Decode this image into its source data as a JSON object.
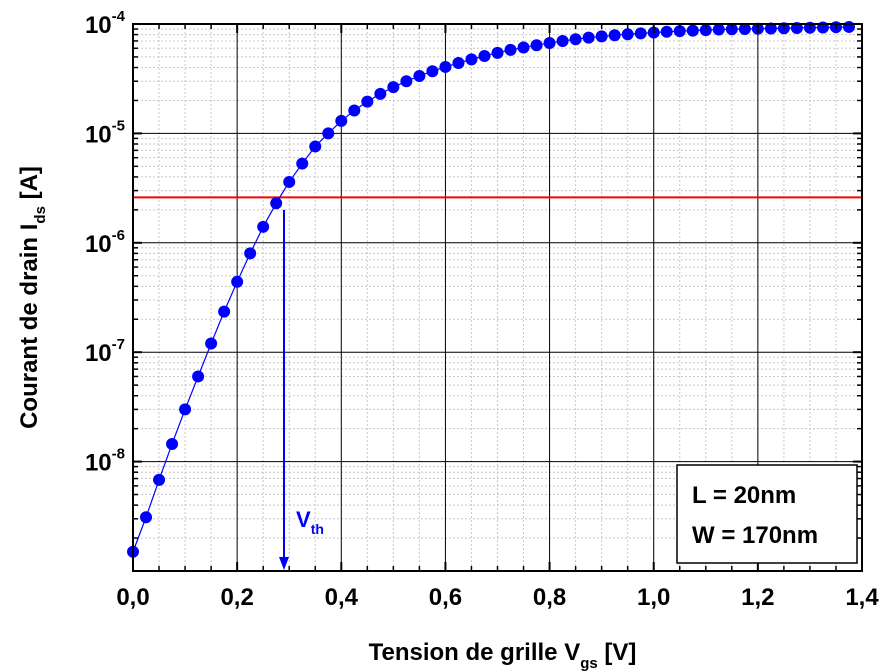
{
  "chart_data": {
    "type": "scatter",
    "title": "",
    "xlabel": {
      "main": "Tension de grille V",
      "sub": "gs",
      "unit": " [V]"
    },
    "ylabel": {
      "main": "Courant de drain I",
      "sub": "ds",
      "unit": " [A]"
    },
    "xlim": [
      0.0,
      1.4
    ],
    "ylim": [
      1e-09,
      0.0001
    ],
    "yscale": "log",
    "grid": true,
    "x_ticks": [
      "0,0",
      "0,2",
      "0,4",
      "0,6",
      "0,8",
      "1,0",
      "1,2",
      "1,4"
    ],
    "y_ticks": [
      {
        "base": "10",
        "exp": "-8",
        "value": 1e-08
      },
      {
        "base": "10",
        "exp": "-7",
        "value": 1e-07
      },
      {
        "base": "10",
        "exp": "-6",
        "value": 1e-06
      },
      {
        "base": "10",
        "exp": "-5",
        "value": 1e-05
      },
      {
        "base": "10",
        "exp": "-4",
        "value": 0.0001
      }
    ],
    "series": [
      {
        "color": "#0000ff",
        "marker": "circle",
        "line": true,
        "x": [
          0.0,
          0.025,
          0.05,
          0.075,
          0.1,
          0.125,
          0.15,
          0.175,
          0.2,
          0.225,
          0.25,
          0.275,
          0.3,
          0.325,
          0.35,
          0.375,
          0.4,
          0.425,
          0.45,
          0.475,
          0.5,
          0.525,
          0.55,
          0.575,
          0.6,
          0.625,
          0.65,
          0.675,
          0.7,
          0.725,
          0.75,
          0.775,
          0.8,
          0.825,
          0.85,
          0.875,
          0.9,
          0.925,
          0.95,
          0.975,
          1.0,
          1.025,
          1.05,
          1.075,
          1.1,
          1.125,
          1.15,
          1.175,
          1.2,
          1.225,
          1.25,
          1.275,
          1.3,
          1.325,
          1.35,
          1.375
        ],
        "y": [
          1.5e-09,
          3.1e-09,
          6.8e-09,
          1.45e-08,
          3e-08,
          6e-08,
          1.2e-07,
          2.35e-07,
          4.4e-07,
          8e-07,
          1.4e-06,
          2.3e-06,
          3.6e-06,
          5.3e-06,
          7.6e-06,
          1e-05,
          1.3e-05,
          1.62e-05,
          1.95e-05,
          2.3e-05,
          2.65e-05,
          3e-05,
          3.35e-05,
          3.7e-05,
          4.05e-05,
          4.4e-05,
          4.75e-05,
          5.1e-05,
          5.45e-05,
          5.8e-05,
          6.1e-05,
          6.4e-05,
          6.7e-05,
          7e-05,
          7.25e-05,
          7.5e-05,
          7.7e-05,
          7.9e-05,
          8.05e-05,
          8.2e-05,
          8.35e-05,
          8.5e-05,
          8.6e-05,
          8.7e-05,
          8.8e-05,
          8.9e-05,
          8.95e-05,
          9e-05,
          9.05e-05,
          9.1e-05,
          9.15e-05,
          9.2e-05,
          9.25e-05,
          9.3e-05,
          9.35e-05,
          9.4e-05
        ]
      }
    ],
    "reference_lines": [
      {
        "orientation": "horizontal",
        "y": 2.6e-06,
        "color": "#ff0000"
      }
    ],
    "annotations": [
      {
        "type": "arrow",
        "x": 0.29,
        "y_from": 2e-06,
        "y_to": 1e-09,
        "color": "#0000ff",
        "label": {
          "main": "V",
          "sub": "th"
        }
      }
    ],
    "legend_box": {
      "lines": [
        "L = 20nm",
        "W = 170nm"
      ],
      "placement": "bottom-right"
    }
  }
}
